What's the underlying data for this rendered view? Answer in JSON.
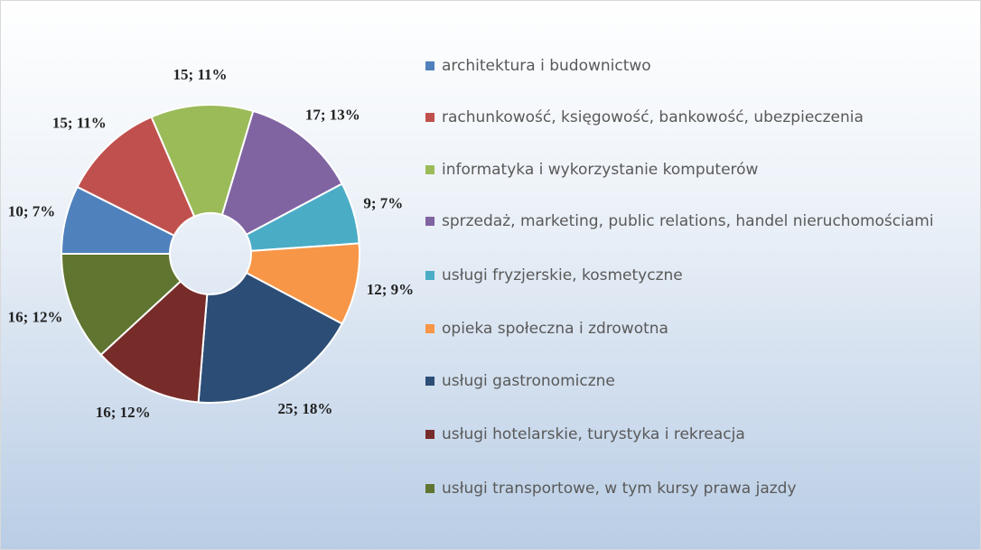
{
  "chart_data": {
    "type": "donut",
    "categories": [
      "architektura i budownictwo",
      "rachunkowość, księgowość, bankowość, ubezpieczenia",
      "informatyka i wykorzystanie komputerów",
      "sprzedaż, marketing, public relations, handel nieruchomościami",
      "usługi fryzjerskie, kosmetyczne",
      "opieka społeczna i zdrowotna",
      "usługi gastronomiczne",
      "usługi hotelarskie, turystyka i rekreacja",
      "usługi transportowe, w tym kursy prawa jazdy"
    ],
    "values": [
      10,
      15,
      15,
      17,
      9,
      12,
      25,
      16,
      16
    ],
    "value_labels": [
      "10; 7%",
      "15; 11%",
      "15; 11%",
      "17; 13%",
      "9; 7%",
      "12; 9%",
      "25; 18%",
      "16; 12%",
      "16; 12%"
    ],
    "colors": [
      "#4f81bd",
      "#c0504d",
      "#9bbb59",
      "#8064a2",
      "#4bacc6",
      "#f79646",
      "#2c4d75",
      "#772c2a",
      "#5f7530"
    ],
    "legend": "right"
  }
}
